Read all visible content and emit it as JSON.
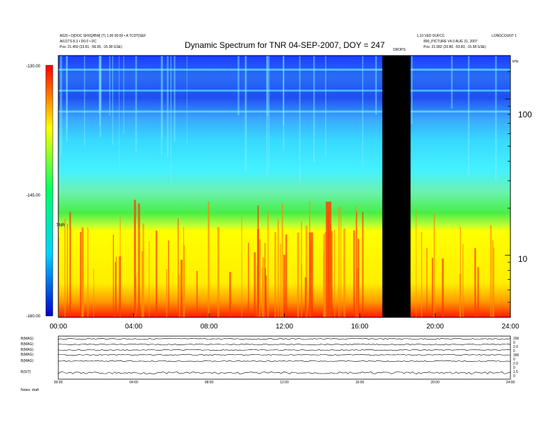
{
  "chart_data": [
    {
      "type": "heatmap",
      "title": "Dynamic Spectrum for TNR 04-SEP-2007, DOY = 247",
      "header_left": [
        "A520 • D[DOC SFRQ/BW] (T) 1.00 00:00 • A TCDT[SEF",
        "A0J1TS 8.3 • D0.0 • DC",
        "Pos: 21.459 (23.81, -56.05, -15.38 GSE)"
      ],
      "header_right": [
        "1.10 VED DUFCC",
        "800_PICTURE V4.0 AUG 31, 2007",
        "Pos: 21.582 (20.80, -53.83, -15.58 GSE)"
      ],
      "header_far_right": "LONGCOUNT 1",
      "gap_label": "DROPS",
      "freq_unit": "kHz",
      "x_ticks": [
        "00:00",
        "04:00",
        "08:00",
        "12:00",
        "16:00",
        "20:00",
        "24:00"
      ],
      "x_range_hours": [
        0,
        24
      ],
      "y_right_ticks": [
        "100",
        "10"
      ],
      "y_scale": "log",
      "y_range_khz": [
        4,
        190
      ],
      "colorbar": {
        "ticks": [
          "-130.00",
          "-145.00",
          "-160.00"
        ],
        "range": [
          -160,
          -130
        ],
        "label": "TNR",
        "colors": [
          "#0000ff",
          "#00ccff",
          "#00ff88",
          "#ffff00",
          "#ff0000"
        ]
      },
      "bands": [
        {
          "from_khz": 190,
          "to_khz": 70,
          "level": -134
        },
        {
          "from_khz": 70,
          "to_khz": 28,
          "level": -140
        },
        {
          "from_khz": 28,
          "to_khz": 14,
          "level": -146
        },
        {
          "from_khz": 14,
          "to_khz": 6,
          "level": -153
        },
        {
          "from_khz": 6,
          "to_khz": 4,
          "level": -157
        }
      ],
      "data_gap_hours": [
        17.2,
        18.7
      ]
    },
    {
      "type": "line",
      "panel_labels": [
        "B(MAG)",
        "B(MAG)",
        "B(MAG)",
        "B(MAG)",
        "B(MAG)",
        "B(SIT)"
      ],
      "right_labels": [
        "200",
        "0",
        "2.0",
        "0",
        "300",
        "0",
        "2.0",
        "0",
        "1.5",
        "0"
      ],
      "x_ticks": [
        "00:00",
        "04:00",
        "08:00",
        "12:00",
        "16:00",
        "20:00",
        "24:00"
      ],
      "footer": "Notes: draft"
    }
  ]
}
